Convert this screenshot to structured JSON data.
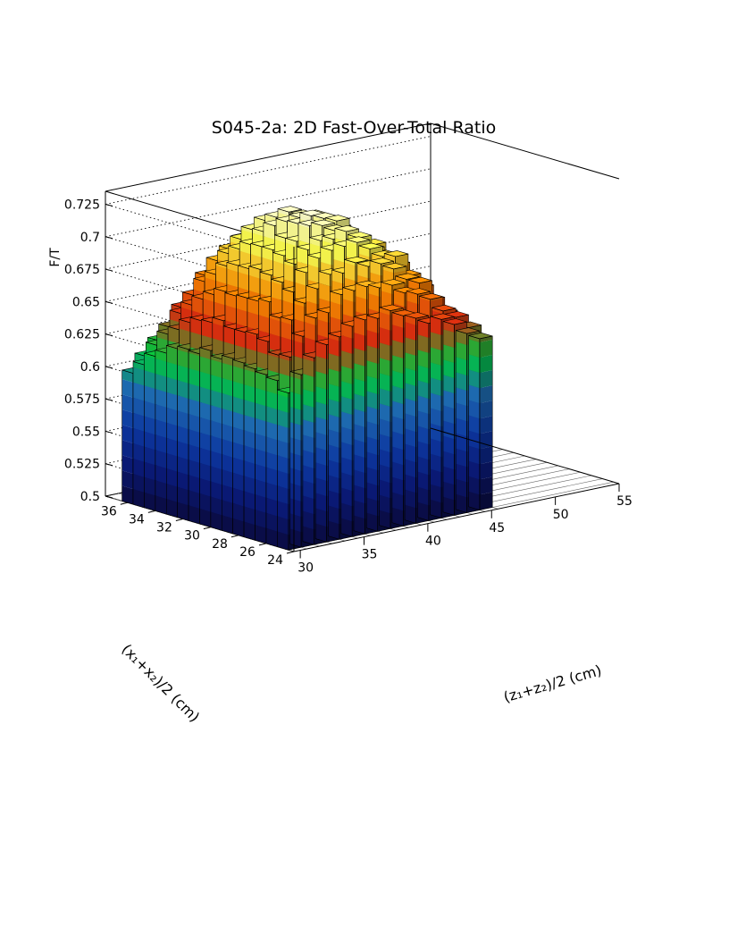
{
  "chart_data": {
    "type": "lego3d",
    "title": "S045-2a: 2D Fast-Over-Total Ratio",
    "xlabel": "(z₁+z₂)/2 (cm)",
    "ylabel": "(x₁+x₂)/2 (cm)",
    "zlabel": "F/T",
    "xlim": [
      29.5,
      55
    ],
    "ylim": [
      24,
      37.6
    ],
    "zlim": [
      0.5,
      0.735
    ],
    "x_ticks": [
      "30",
      "35",
      "40",
      "45",
      "50",
      "55"
    ],
    "y_ticks": [
      "24",
      "26",
      "28",
      "30",
      "32",
      "34",
      "36"
    ],
    "z_ticks": [
      "0.5",
      "0.525",
      "0.55",
      "0.575",
      "0.6",
      "0.625",
      "0.65",
      "0.675",
      "0.7",
      "0.725"
    ],
    "grid": true,
    "colormap": [
      "#0a0a40",
      "#0b1a7a",
      "#0d3aa8",
      "#1f6fb8",
      "#00d040",
      "#e03010",
      "#ff9000",
      "#ffff50",
      "#ffffff"
    ],
    "bins": {
      "x_start": 29.5,
      "x_width": 1.0,
      "nx": 16,
      "y_start": 24.4,
      "y_width": 0.8,
      "ny": 15,
      "values": [
        [
          0.621,
          0.633,
          0.644,
          0.652,
          0.656,
          0.662,
          0.665,
          0.664,
          0.668,
          0.662,
          0.658,
          0.652,
          0.653,
          0.647,
          0.638,
          0.632
        ],
        [
          0.628,
          0.644,
          0.658,
          0.67,
          0.672,
          0.684,
          0.685,
          0.686,
          0.683,
          0.683,
          0.675,
          0.672,
          0.666,
          0.655,
          0.648,
          0.638
        ],
        [
          0.63,
          0.643,
          0.668,
          0.679,
          0.688,
          0.697,
          0.696,
          0.702,
          0.697,
          0.697,
          0.691,
          0.681,
          0.676,
          0.661,
          0.649,
          0.635
        ],
        [
          0.632,
          0.651,
          0.667,
          0.685,
          0.698,
          0.707,
          0.711,
          0.712,
          0.713,
          0.706,
          0.698,
          0.696,
          0.679,
          0.668,
          0.65,
          0.64
        ],
        [
          0.634,
          0.654,
          0.677,
          0.69,
          0.702,
          0.711,
          0.716,
          0.715,
          0.719,
          0.712,
          0.701,
          0.694,
          0.685,
          0.67,
          0.656,
          0.639
        ],
        [
          0.635,
          0.653,
          0.675,
          0.693,
          0.706,
          0.715,
          0.725,
          0.723,
          0.717,
          0.711,
          0.703,
          0.7,
          0.683,
          0.67,
          0.656,
          0.637
        ],
        [
          0.632,
          0.653,
          0.675,
          0.695,
          0.708,
          0.715,
          0.724,
          0.728,
          0.724,
          0.72,
          0.705,
          0.698,
          0.687,
          0.67,
          0.653,
          0.638
        ],
        [
          0.636,
          0.657,
          0.674,
          0.693,
          0.708,
          0.722,
          0.723,
          0.724,
          0.723,
          0.719,
          0.71,
          0.699,
          0.689,
          0.67,
          0.655,
          0.638
        ],
        [
          0.631,
          0.653,
          0.675,
          0.693,
          0.707,
          0.715,
          0.724,
          0.726,
          0.721,
          0.719,
          0.707,
          0.699,
          0.683,
          0.672,
          0.652,
          0.636
        ],
        [
          0.632,
          0.652,
          0.67,
          0.69,
          0.701,
          0.714,
          0.719,
          0.719,
          0.717,
          0.711,
          0.703,
          0.695,
          0.68,
          0.665,
          0.653,
          0.632
        ],
        [
          0.63,
          0.648,
          0.664,
          0.681,
          0.695,
          0.704,
          0.709,
          0.711,
          0.711,
          0.707,
          0.697,
          0.689,
          0.673,
          0.661,
          0.644,
          0.628
        ],
        [
          0.624,
          0.64,
          0.657,
          0.673,
          0.687,
          0.694,
          0.7,
          0.702,
          0.699,
          0.697,
          0.688,
          0.681,
          0.667,
          0.65,
          0.638,
          0.621
        ],
        [
          0.619,
          0.634,
          0.648,
          0.66,
          0.673,
          0.682,
          0.685,
          0.688,
          0.688,
          0.684,
          0.679,
          0.667,
          0.654,
          0.643,
          0.63,
          0.616
        ],
        [
          0.61,
          0.623,
          0.635,
          0.648,
          0.654,
          0.664,
          0.667,
          0.671,
          0.671,
          0.666,
          0.661,
          0.651,
          0.642,
          0.629,
          0.618,
          0.606
        ],
        [
          0.601,
          0.612,
          0.622,
          0.63,
          0.638,
          0.643,
          0.647,
          0.649,
          0.647,
          0.644,
          0.642,
          0.633,
          0.624,
          0.616,
          0.605,
          0.597
        ]
      ]
    }
  }
}
